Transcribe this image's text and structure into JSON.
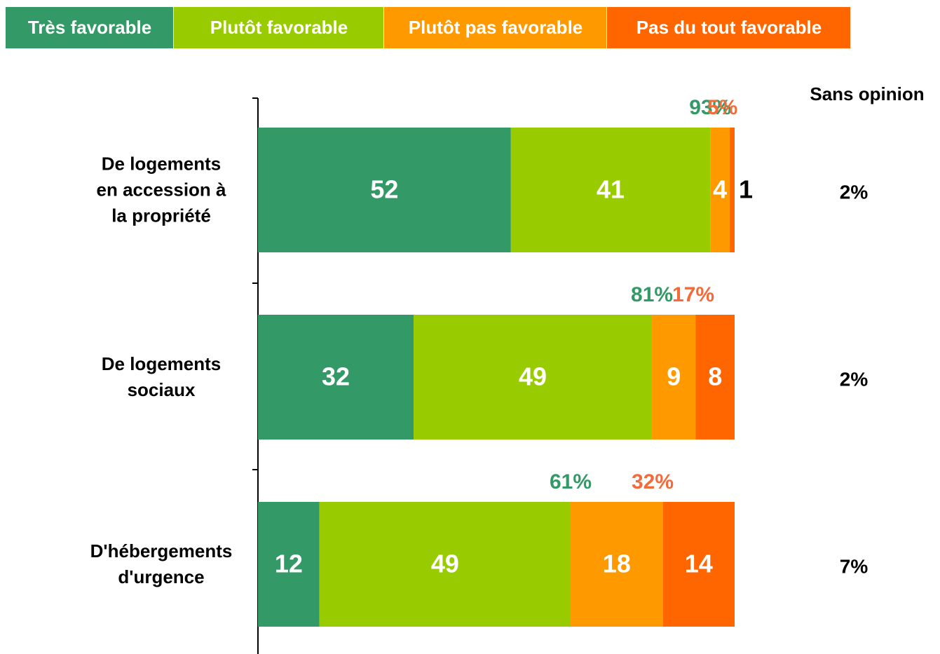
{
  "chart_data": {
    "type": "bar",
    "orientation": "horizontal",
    "stacked": true,
    "legend": "top",
    "categories": [
      "De logements\nen accession à\nla propriété",
      "De logements\nsociaux",
      "D'hébergements\nd'urgence"
    ],
    "series": [
      {
        "name": "Très favorable",
        "color": "#339966",
        "values": [
          52,
          32,
          12
        ]
      },
      {
        "name": "Plutôt favorable",
        "color": "#99cc00",
        "values": [
          41,
          49,
          49
        ]
      },
      {
        "name": "Plutôt pas favorable",
        "color": "#ff9900",
        "values": [
          4,
          9,
          18
        ]
      },
      {
        "name": "Pas du tout favorable",
        "color": "#ff6600",
        "values": [
          1,
          8,
          14
        ]
      }
    ],
    "favorable_totals": {
      "color": "#339966",
      "values": [
        93,
        81,
        61
      ],
      "value_labels": [
        "93%",
        "81%",
        "61%"
      ]
    },
    "unfavorable_totals": {
      "color": "#f26b3a",
      "values": [
        5,
        17,
        32
      ],
      "value_labels": [
        "5%",
        "17%",
        "32%"
      ]
    },
    "sans_opinion": {
      "name": "Sans opinion",
      "values": [
        2,
        2,
        7
      ],
      "value_labels": [
        "2%",
        "2%",
        "7%"
      ]
    }
  }
}
